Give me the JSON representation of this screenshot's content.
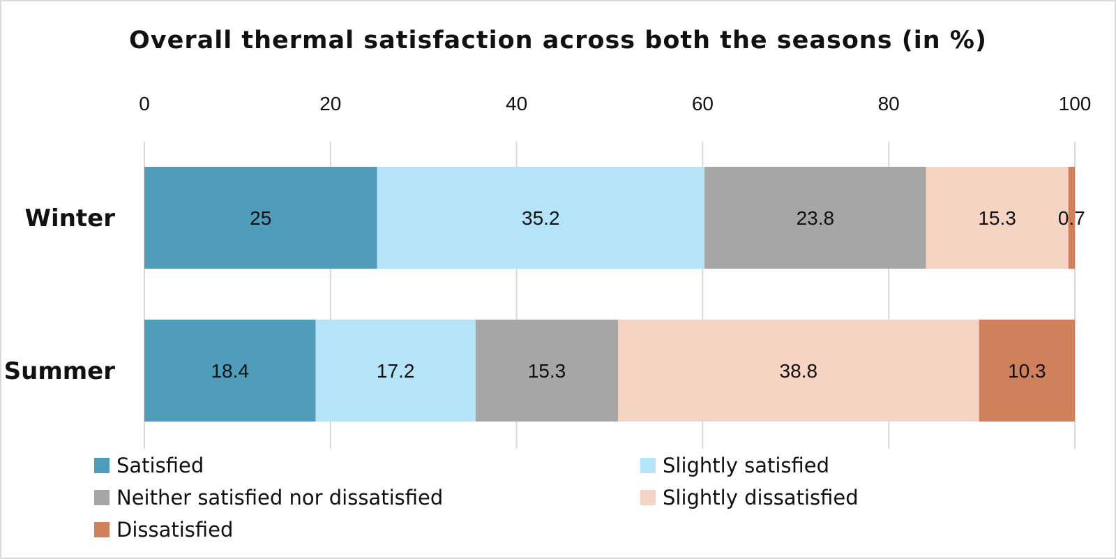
{
  "chart_data": {
    "type": "bar",
    "orientation": "horizontal",
    "stacked": true,
    "title": "Overall thermal satisfaction across both the seasons (in %)",
    "categories": [
      "Winter",
      "Summer"
    ],
    "xlim": [
      0,
      100
    ],
    "xticks": [
      0,
      20,
      40,
      60,
      80,
      100
    ],
    "xaxis_position": "top",
    "grid": true,
    "legend_position": "bottom",
    "series": [
      {
        "name": "Satisfied",
        "values": [
          25,
          18.4
        ],
        "color": "#4f9cbb"
      },
      {
        "name": "Slightly satisfied",
        "values": [
          35.2,
          17.2
        ],
        "color": "#b5e3f7"
      },
      {
        "name": "Neither satisfied nor dissatisfied",
        "values": [
          23.8,
          15.3
        ],
        "color": "#a6a6a6"
      },
      {
        "name": "Slightly dissatisfied",
        "values": [
          15.3,
          38.8
        ],
        "color": "#f5d4c3"
      },
      {
        "name": "Dissatisfied",
        "values": [
          0.7,
          10.3
        ],
        "color": "#d0805a"
      }
    ]
  }
}
